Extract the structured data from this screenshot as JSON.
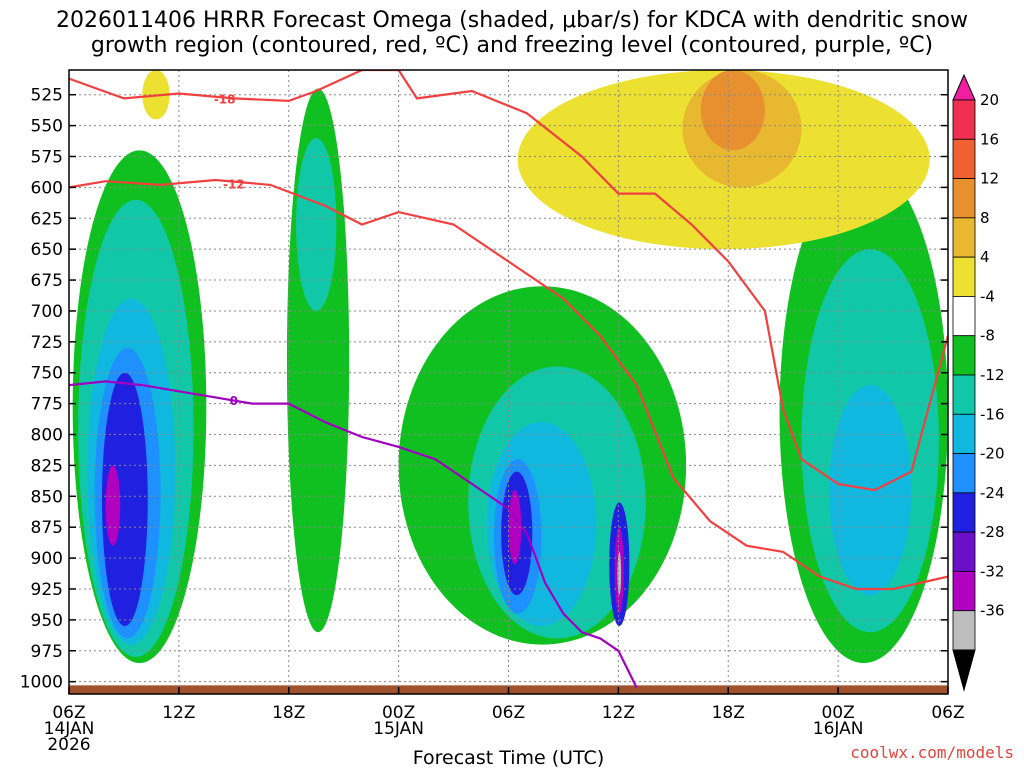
{
  "title_line1": "2026011406 HRRR Forecast Omega (shaded, μbar/s) for KDCA with dendritic snow",
  "title_line2": "growth region (contoured, red, ºC) and freezing level (contoured, purple, ºC)",
  "credit": "coolwx.com/models",
  "chart_data": {
    "type": "heatmap",
    "title": "2026011406 HRRR Forecast Omega (shaded, μbar/s) for KDCA with dendritic snow growth region (contoured, red, ºC) and freezing level (contoured, purple, ºC)",
    "xlabel": "Forecast Time (UTC)",
    "ylabel": "",
    "x_hours_range": [
      0,
      48
    ],
    "ylim": [
      1010,
      505
    ],
    "x_ticks": [
      {
        "hour": 0,
        "lines": [
          "06Z",
          "14JAN",
          "2026"
        ]
      },
      {
        "hour": 6,
        "lines": [
          "12Z"
        ]
      },
      {
        "hour": 12,
        "lines": [
          "18Z"
        ]
      },
      {
        "hour": 18,
        "lines": [
          "00Z",
          "15JAN"
        ]
      },
      {
        "hour": 24,
        "lines": [
          "06Z"
        ]
      },
      {
        "hour": 30,
        "lines": [
          "12Z"
        ]
      },
      {
        "hour": 36,
        "lines": [
          "18Z"
        ]
      },
      {
        "hour": 42,
        "lines": [
          "00Z",
          "16JAN"
        ]
      },
      {
        "hour": 48,
        "lines": [
          "06Z"
        ]
      }
    ],
    "y_ticks": [
      525,
      550,
      575,
      600,
      625,
      650,
      675,
      700,
      725,
      750,
      775,
      800,
      825,
      850,
      875,
      900,
      925,
      950,
      975,
      1000
    ],
    "colorbar": {
      "levels": [
        -36,
        -32,
        -28,
        -24,
        -20,
        -16,
        -12,
        -8,
        -4,
        4,
        8,
        12,
        16,
        20
      ],
      "labels": [
        "20",
        "16",
        "12",
        "8",
        "4",
        "-4",
        "-8",
        "-12",
        "-16",
        "-20",
        "-24",
        "-28",
        "-32",
        "-36"
      ],
      "colors": [
        "#bdbdbd",
        "#b000c0",
        "#6a10c8",
        "#2020e0",
        "#1e90ff",
        "#10b8e0",
        "#10c8a8",
        "#10c020",
        "#ffffff",
        "#ece030",
        "#e8b830",
        "#e89030",
        "#f06030",
        "#f03050"
      ],
      "low_extend_color": "#000000",
      "high_extend_color": "#f01ea0"
    },
    "omega_regions": [
      {
        "value": -6,
        "color": "#10c020",
        "t0": 0.2,
        "t1": 7.5,
        "p_top": 570,
        "p_bot": 985
      },
      {
        "value": -10,
        "color": "#10c8a8",
        "t0": 0.5,
        "t1": 6.8,
        "p_top": 610,
        "p_bot": 980
      },
      {
        "value": -14,
        "color": "#10b8e0",
        "t0": 1.0,
        "t1": 5.8,
        "p_top": 690,
        "p_bot": 970
      },
      {
        "value": -18,
        "color": "#1e90ff",
        "t0": 1.4,
        "t1": 5.0,
        "p_top": 730,
        "p_bot": 965
      },
      {
        "value": -22,
        "color": "#2020e0",
        "t0": 1.8,
        "t1": 4.3,
        "p_top": 750,
        "p_bot": 955
      },
      {
        "value": -26,
        "color": "#b000c0",
        "t0": 2.0,
        "t1": 2.8,
        "p_top": 825,
        "p_bot": 890
      },
      {
        "value": -6,
        "color": "#10c020",
        "t0": 11.9,
        "t1": 15.3,
        "p_top": 520,
        "p_bot": 960
      },
      {
        "value": -10,
        "color": "#10c8a8",
        "t0": 12.4,
        "t1": 14.6,
        "p_top": 560,
        "p_bot": 700
      },
      {
        "value": -6,
        "color": "#10c020",
        "t0": 18.0,
        "t1": 33.7,
        "p_top": 680,
        "p_bot": 970
      },
      {
        "value": -10,
        "color": "#10c8a8",
        "t0": 21.8,
        "t1": 31.5,
        "p_top": 745,
        "p_bot": 965
      },
      {
        "value": -14,
        "color": "#10b8e0",
        "t0": 22.8,
        "t1": 28.8,
        "p_top": 790,
        "p_bot": 955
      },
      {
        "value": -18,
        "color": "#1e90ff",
        "t0": 23.2,
        "t1": 25.8,
        "p_top": 820,
        "p_bot": 945
      },
      {
        "value": -22,
        "color": "#2020e0",
        "t0": 23.6,
        "t1": 25.3,
        "p_top": 830,
        "p_bot": 930
      },
      {
        "value": -26,
        "color": "#b000c0",
        "t0": 24.0,
        "t1": 24.7,
        "p_top": 845,
        "p_bot": 905
      },
      {
        "value": -22,
        "color": "#2020e0",
        "t0": 29.5,
        "t1": 30.6,
        "p_top": 855,
        "p_bot": 955
      },
      {
        "value": -26,
        "color": "#b000c0",
        "t0": 29.8,
        "t1": 30.3,
        "p_top": 875,
        "p_bot": 945
      },
      {
        "value": -34,
        "color": "#bdbdbd",
        "t0": 29.95,
        "t1": 30.15,
        "p_top": 895,
        "p_bot": 930
      },
      {
        "value": -6,
        "color": "#10c020",
        "t0": 38.8,
        "t1": 48.0,
        "p_top": 580,
        "p_bot": 985
      },
      {
        "value": -10,
        "color": "#10c8a8",
        "t0": 40.0,
        "t1": 47.5,
        "p_top": 650,
        "p_bot": 960
      },
      {
        "value": -14,
        "color": "#10b8e0",
        "t0": 41.5,
        "t1": 46.0,
        "p_top": 760,
        "p_bot": 930
      },
      {
        "value": 6,
        "color": "#ece030",
        "t0": 4.0,
        "t1": 5.5,
        "p_top": 505,
        "p_bot": 545
      },
      {
        "value": 6,
        "color": "#ece030",
        "t0": 24.5,
        "t1": 47.0,
        "p_top": 505,
        "p_bot": 650
      },
      {
        "value": 10,
        "color": "#e8b830",
        "t0": 33.5,
        "t1": 40.0,
        "p_top": 505,
        "p_bot": 600
      },
      {
        "value": 14,
        "color": "#e89030",
        "t0": 34.5,
        "t1": 38.0,
        "p_top": 505,
        "p_bot": 570
      }
    ],
    "contours": [
      {
        "name": "dgz-minus18",
        "color": "#f04040",
        "label": "-18",
        "label_hour": 8.5,
        "label_pressure": 528,
        "points": [
          [
            0,
            512
          ],
          [
            3,
            528
          ],
          [
            6,
            524
          ],
          [
            9,
            528
          ],
          [
            12,
            530
          ],
          [
            13.5,
            522
          ],
          [
            16,
            505
          ],
          [
            18,
            505
          ],
          [
            19,
            528
          ],
          [
            22,
            522
          ],
          [
            25,
            540
          ],
          [
            28,
            575
          ],
          [
            30,
            605
          ],
          [
            32,
            605
          ],
          [
            34,
            630
          ],
          [
            36,
            660
          ],
          [
            38,
            700
          ],
          [
            39,
            780
          ],
          [
            40,
            820
          ],
          [
            42,
            840
          ],
          [
            44,
            845
          ],
          [
            46,
            830
          ],
          [
            48,
            720
          ]
        ]
      },
      {
        "name": "dgz-minus12",
        "color": "#f04040",
        "label": "-12",
        "label_hour": 9.0,
        "label_pressure": 597,
        "points": [
          [
            0,
            600
          ],
          [
            2,
            595
          ],
          [
            5,
            598
          ],
          [
            8,
            594
          ],
          [
            11,
            598
          ],
          [
            14,
            615
          ],
          [
            16,
            630
          ],
          [
            18,
            620
          ],
          [
            21,
            630
          ],
          [
            24,
            660
          ],
          [
            27,
            690
          ],
          [
            29,
            720
          ],
          [
            31,
            760
          ],
          [
            33,
            835
          ],
          [
            35,
            870
          ],
          [
            37,
            890
          ],
          [
            39,
            895
          ],
          [
            41,
            915
          ],
          [
            43,
            925
          ],
          [
            45,
            925
          ],
          [
            48,
            915
          ]
        ]
      },
      {
        "name": "freezing-level",
        "color": "#a000c0",
        "label": "0",
        "label_hour": 9.0,
        "label_pressure": 772,
        "points": [
          [
            0,
            760
          ],
          [
            2,
            757
          ],
          [
            4,
            760
          ],
          [
            6,
            765
          ],
          [
            8,
            770
          ],
          [
            10,
            775
          ],
          [
            12,
            775
          ],
          [
            14,
            790
          ],
          [
            16,
            802
          ],
          [
            18,
            810
          ],
          [
            20,
            820
          ],
          [
            22,
            840
          ],
          [
            24,
            860
          ],
          [
            25,
            880
          ],
          [
            26,
            920
          ],
          [
            27,
            945
          ],
          [
            28,
            960
          ],
          [
            29,
            965
          ],
          [
            30,
            975
          ],
          [
            31,
            1005
          ]
        ]
      }
    ],
    "terrain": {
      "color": "#a0522d",
      "surface_pressure_min": 1003,
      "surface_pressure_max": 1010
    }
  }
}
